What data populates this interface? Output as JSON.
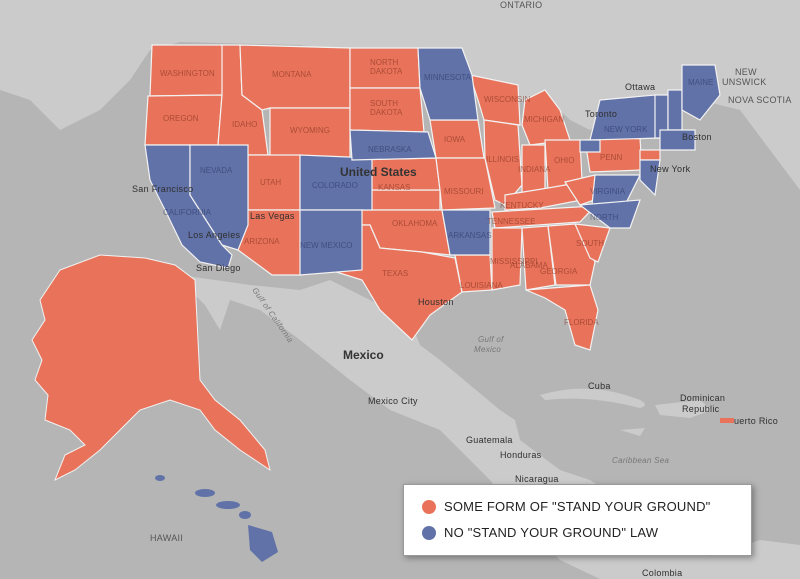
{
  "colors": {
    "some_form": "#e9735a",
    "no_law": "#6172a8",
    "land": "#c9c9c9",
    "water": "#b3b3b3"
  },
  "legend": {
    "items": [
      {
        "label": "SOME FORM OF \"STAND YOUR GROUND\"",
        "color_key": "some_form"
      },
      {
        "label": "NO \"STAND YOUR GROUND\" LAW",
        "color_key": "no_law"
      }
    ]
  },
  "labels": {
    "countries": {
      "united_states": "United States",
      "mexico": "Mexico",
      "cuba": "Cuba",
      "dominican": "Dominican",
      "republic": "Republic",
      "puerto_rico": "uerto Rico",
      "guatemala": "Guatemala",
      "honduras": "Honduras",
      "nicaragua": "Nicaragua",
      "colombia": "Colombia"
    },
    "provinces": {
      "ontario": "ONTARIO",
      "new_brunswick_1": "NEW",
      "new_brunswick_2": "UNSWICK",
      "nova_scotia": "NOVA SCOTIA",
      "hawaii": "HAWAII"
    },
    "cities": {
      "ottawa": "Ottawa",
      "toronto": "Toronto",
      "boston": "Boston",
      "new_york": "New York",
      "san_francisco": "San Francisco",
      "los_angeles": "Los Angeles",
      "san_diego": "San Diego",
      "las_vegas": "Las Vegas",
      "houston": "Houston",
      "mexico_city": "Mexico City"
    },
    "water": {
      "gulf_of_california": "Gulf of California",
      "gulf_of_mexico_1": "Gulf of",
      "gulf_of_mexico_2": "Mexico",
      "caribbean_sea": "Caribbean Sea"
    },
    "states": {
      "washington": "WASHINGTON",
      "oregon": "OREGON",
      "idaho": "IDAHO",
      "montana": "MONTANA",
      "wyoming": "WYOMING",
      "north_dakota_1": "NORTH",
      "north_dakota_2": "DAKOTA",
      "south_dakota_1": "SOUTH",
      "south_dakota_2": "DAKOTA",
      "nebraska": "NEBRASKA",
      "colorado": "COLORADO",
      "utah": "UTAH",
      "nevada": "NEVADA",
      "california": "CALIFORNIA",
      "arizona": "ARIZONA",
      "new_mexico": "NEW MEXICO",
      "kansas": "KANSAS",
      "oklahoma": "OKLAHOMA",
      "texas": "TEXAS",
      "minnesota": "MINNESOTA",
      "iowa": "IOWA",
      "missouri": "MISSOURI",
      "arkansas": "ARKANSAS",
      "louisiana": "LOUISIANA",
      "wisconsin": "WISCONSIN",
      "illinois": "ILLINOIS",
      "michigan": "MICHIGAN",
      "indiana": "INDIANA",
      "ohio": "OHIO",
      "kentucky": "KENTUCKY",
      "tennessee": "TENNESSEE",
      "mississippi": "MISSISSIPPI",
      "alabama": "ALABAMA",
      "georgia": "GEORGIA",
      "florida": "FLORIDA",
      "south_carolina": "SOUTH",
      "north_carolina": "NORTH",
      "virginia": "VIRGINIA",
      "penn": "PENN",
      "new_york": "NEW YORK",
      "maine": "MAINE"
    }
  }
}
